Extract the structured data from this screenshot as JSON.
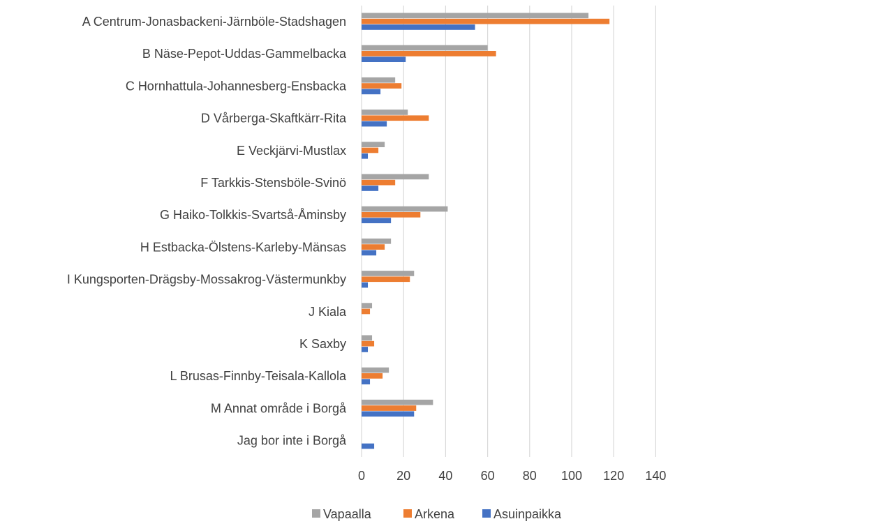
{
  "chart_data": {
    "type": "bar",
    "orientation": "horizontal",
    "categories": [
      "A Centrum-Jonasbackeni-Järnböle-Stadshagen",
      "B Näse-Pepot-Uddas-Gammelbacka",
      "C Hornhattula-Johannesberg-Ensbacka",
      "D Vårberga-Skaftkärr-Rita",
      "E Veckjärvi-Mustlax",
      "F Tarkkis-Stensböle-Svinö",
      "G Haiko-Tolkkis-Svartså-Åminsby",
      "H Estbacka-Ölstens-Karleby-Mänsas",
      "I Kungsporten-Drägsby-Mossakrog-Västermunkby",
      "J Kiala",
      "K Saxby",
      "L Brusas-Finnby-Teisala-Kallola",
      "M Annat område i Borgå",
      "Jag bor inte i Borgå"
    ],
    "series": [
      {
        "name": "Vapaalla",
        "color": "#a5a5a5",
        "values": [
          108,
          60,
          16,
          22,
          11,
          32,
          41,
          14,
          25,
          5,
          5,
          13,
          34,
          0
        ]
      },
      {
        "name": "Arkena",
        "color": "#ed7d31",
        "values": [
          118,
          64,
          19,
          32,
          8,
          16,
          28,
          11,
          23,
          4,
          6,
          10,
          26,
          0
        ]
      },
      {
        "name": "Asuinpaikka",
        "color": "#4472c4",
        "values": [
          54,
          21,
          9,
          12,
          3,
          8,
          14,
          7,
          3,
          0,
          3,
          4,
          25,
          6
        ]
      }
    ],
    "xlim": [
      0,
      140
    ],
    "xticks": [
      "0",
      "20",
      "40",
      "60",
      "80",
      "100",
      "120",
      "140"
    ],
    "grid": "vertical",
    "legend_position": "bottom",
    "title": "",
    "xlabel": "",
    "ylabel": ""
  }
}
